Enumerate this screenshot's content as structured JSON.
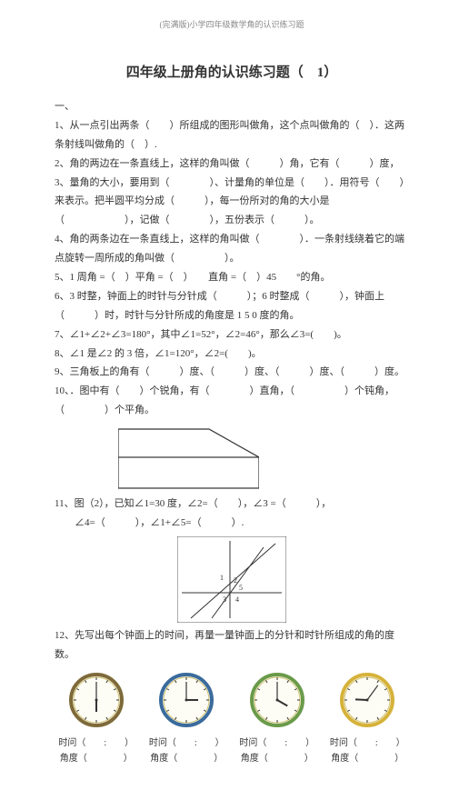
{
  "header": "(完满版)小学四年级数学角的认识练习题",
  "title": "四年级上册角的认识练习题（　1）",
  "section": "一、",
  "lines": {
    "l1": "1、从一点引出两条（　　）所组成的图形叫做角，这个点叫做角的（　）．这两条射线叫做角的（　）.",
    "l2": "2、角的两边在一条直线上，这样的角叫做（　　　）角，它有（　　　）度，",
    "l3": "3、量角的大小，要用到（　　　　）、计量角的单位是（　　）．用符号（　　）来表示。把半圆平均分成（　　　），每一份所对的角的大小是（　　　　　　），记做（　　　　），五份表示（　　　）。",
    "l4": "4、角的两条边在一条直线上，这样的角叫做（　　　　）．一条射线绕着它的端点旋转一周所成的角叫做（　　　　　）。",
    "l5": "5、1 周角 =（　）平角 =（　）　　直角 =（　）45　　°的角。",
    "l6": "6、3 时整，钟面上的时针与分针成（　　　）；6 时整成（　　　），钟面上（　　　）时，时针与分针所成的角度是 1 5 0 度的角。",
    "l7": "7、∠1+∠2+∠3=180°，其中∠1=52°，∠2=46°，那么∠3=(　　)。",
    "l8": "8、∠1 是∠2 的 3 倍，∠1=120°，∠2=(　　)。",
    "l9": "9、三角板上的角有（　　　）度、（　　　）度、（　　　）度、（　　　）度。",
    "l10": "10、．图中有（　　）个锐角，有（　　　　）直角，（　　　　　）个钝角，（　　　　）个平角。",
    "l11a": "11、图（2），已知∠1=30 度，∠2=（　　），∠3 =（　　　），",
    "l11b": "　　∠4=（　　　），∠1+∠5=（　　　）.",
    "l12": "12、先写出每个钟面上的时间，再量一量钟面上的分针和时针所组成的角的度数。"
  },
  "clock_labels": {
    "time": "时问（　　:　　）",
    "angle": "角度（　　　　）"
  },
  "clocks": [
    {
      "ring": "#7e6a3a",
      "hour": 6,
      "min": 0
    },
    {
      "ring": "#3b6b9c",
      "hour": 3,
      "min": 0
    },
    {
      "ring": "#6a9a4a",
      "hour": 4,
      "min": 0
    },
    {
      "ring": "#d6b23a",
      "hour": 9,
      "min": 6
    }
  ],
  "colors": {
    "text": "#333333",
    "header": "#888888",
    "diagram_stroke": "#333"
  }
}
